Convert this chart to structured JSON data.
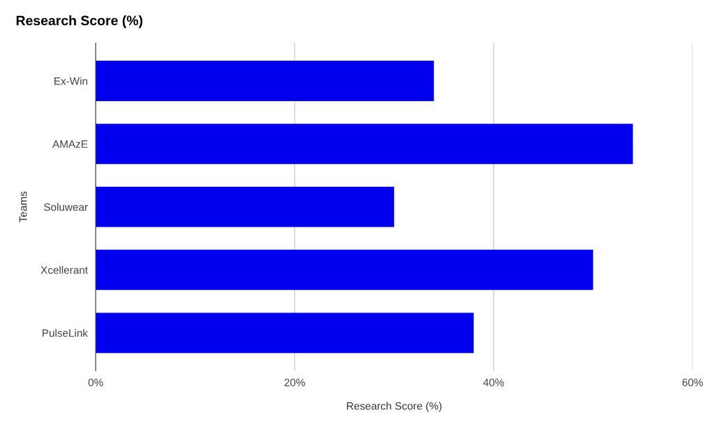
{
  "chart_data": {
    "type": "bar",
    "orientation": "horizontal",
    "title": "Research Score (%)",
    "xlabel": "Research Score (%)",
    "ylabel": "Teams",
    "categories": [
      "Ex-Win",
      "AMAzE",
      "Soluwear",
      "Xcellerant",
      "PulseLink"
    ],
    "values": [
      34,
      54,
      30,
      50,
      38
    ],
    "color": "#0000ee",
    "xlim": [
      0,
      60
    ],
    "xticks": [
      {
        "value": 0,
        "label": "0%"
      },
      {
        "value": 20,
        "label": "20%"
      },
      {
        "value": 40,
        "label": "40%"
      },
      {
        "value": 60,
        "label": "60%"
      }
    ],
    "grid": "x",
    "legend": false
  }
}
